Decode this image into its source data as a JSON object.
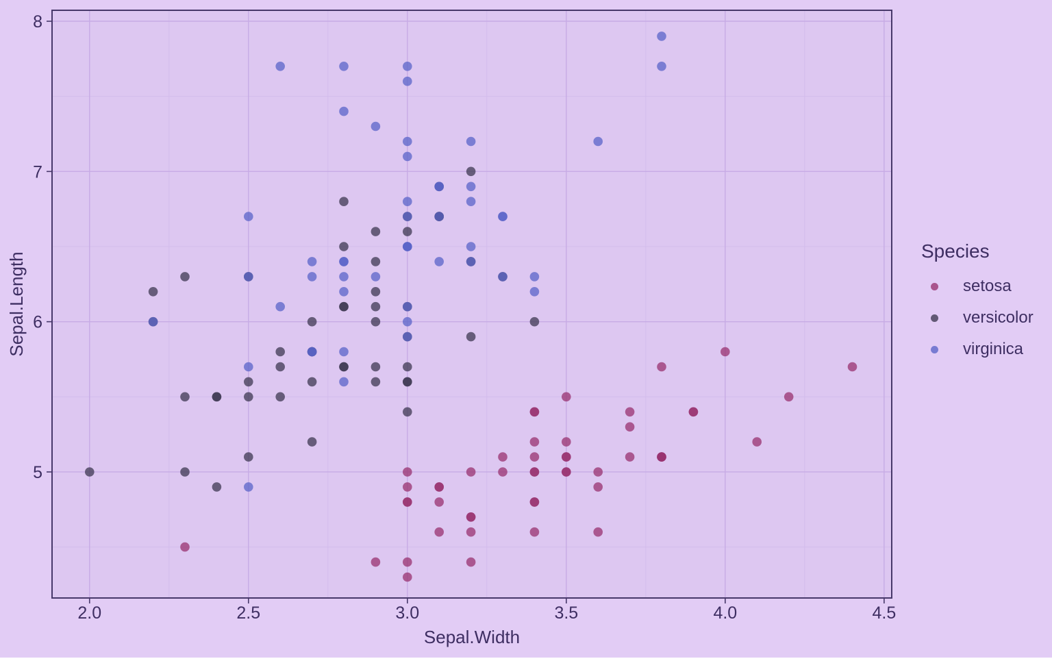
{
  "figure": {
    "background": "#e2ccf5",
    "panel_background": "#ddc7f1",
    "panel_border_color": "#47386a",
    "grid_major_color": "#c7abe5",
    "grid_minor_color": "#d3bcec",
    "tick_color": "#47386a",
    "text_color": "#3e2e62"
  },
  "chart_data": {
    "type": "scatter",
    "title": "",
    "xlabel": "Sepal.Width",
    "ylabel": "Sepal.Length",
    "x_range": [
      1.882,
      4.524
    ],
    "y_range": [
      4.161,
      8.073
    ],
    "x_major_ticks": [
      2.0,
      2.5,
      3.0,
      3.5,
      4.0,
      4.5
    ],
    "x_tick_labels": [
      "2.0",
      "2.5",
      "3.0",
      "3.5",
      "4.0",
      "4.5"
    ],
    "x_minor_ticks": [
      2.25,
      2.75,
      3.25,
      3.75,
      4.25
    ],
    "y_major_ticks": [
      5,
      6,
      7,
      8
    ],
    "y_tick_labels": [
      "5",
      "6",
      "7",
      "8"
    ],
    "y_minor_ticks": [
      4.5,
      5.5,
      6.5,
      7.5
    ],
    "grid": true,
    "legend": {
      "title": "Species",
      "position": "right"
    },
    "point_radius": 6.8,
    "point_opacity": 0.75,
    "series": [
      {
        "name": "setosa",
        "color": "#98326f",
        "points": [
          [
            3.5,
            5.1
          ],
          [
            3.0,
            4.9
          ],
          [
            3.2,
            4.7
          ],
          [
            3.1,
            4.6
          ],
          [
            3.6,
            5.0
          ],
          [
            3.9,
            5.4
          ],
          [
            3.4,
            4.6
          ],
          [
            3.4,
            5.0
          ],
          [
            2.9,
            4.4
          ],
          [
            3.1,
            4.9
          ],
          [
            3.7,
            5.4
          ],
          [
            3.4,
            4.8
          ],
          [
            3.0,
            4.8
          ],
          [
            3.0,
            4.3
          ],
          [
            4.0,
            5.8
          ],
          [
            4.4,
            5.7
          ],
          [
            3.9,
            5.4
          ],
          [
            3.5,
            5.1
          ],
          [
            3.8,
            5.7
          ],
          [
            3.8,
            5.1
          ],
          [
            3.4,
            5.4
          ],
          [
            3.7,
            5.1
          ],
          [
            3.6,
            4.6
          ],
          [
            3.3,
            5.1
          ],
          [
            3.4,
            4.8
          ],
          [
            3.0,
            5.0
          ],
          [
            3.4,
            5.0
          ],
          [
            3.5,
            5.2
          ],
          [
            3.4,
            5.2
          ],
          [
            3.2,
            4.7
          ],
          [
            3.1,
            4.8
          ],
          [
            3.4,
            5.4
          ],
          [
            4.1,
            5.2
          ],
          [
            4.2,
            5.5
          ],
          [
            3.1,
            4.9
          ],
          [
            3.2,
            5.0
          ],
          [
            3.5,
            5.5
          ],
          [
            3.6,
            4.9
          ],
          [
            3.0,
            4.4
          ],
          [
            3.4,
            5.1
          ],
          [
            3.5,
            5.0
          ],
          [
            2.3,
            4.5
          ],
          [
            3.2,
            4.4
          ],
          [
            3.5,
            5.0
          ],
          [
            3.8,
            5.1
          ],
          [
            3.0,
            4.8
          ],
          [
            3.8,
            5.1
          ],
          [
            3.2,
            4.6
          ],
          [
            3.7,
            5.3
          ],
          [
            3.3,
            5.0
          ]
        ]
      },
      {
        "name": "versicolor",
        "color": "#3e3851",
        "points": [
          [
            3.2,
            7.0
          ],
          [
            3.2,
            6.4
          ],
          [
            3.1,
            6.9
          ],
          [
            2.3,
            5.5
          ],
          [
            2.8,
            6.5
          ],
          [
            2.8,
            5.7
          ],
          [
            3.3,
            6.3
          ],
          [
            2.4,
            4.9
          ],
          [
            2.9,
            6.6
          ],
          [
            2.7,
            5.2
          ],
          [
            2.0,
            5.0
          ],
          [
            3.0,
            5.9
          ],
          [
            2.2,
            6.0
          ],
          [
            2.9,
            6.1
          ],
          [
            2.9,
            5.6
          ],
          [
            3.1,
            6.7
          ],
          [
            3.0,
            5.6
          ],
          [
            2.7,
            5.8
          ],
          [
            2.2,
            6.2
          ],
          [
            2.5,
            5.6
          ],
          [
            3.2,
            5.9
          ],
          [
            2.8,
            6.1
          ],
          [
            2.5,
            6.3
          ],
          [
            2.8,
            6.1
          ],
          [
            2.9,
            6.4
          ],
          [
            3.0,
            6.6
          ],
          [
            2.8,
            6.8
          ],
          [
            3.0,
            6.7
          ],
          [
            2.9,
            6.0
          ],
          [
            2.6,
            5.7
          ],
          [
            2.4,
            5.5
          ],
          [
            2.4,
            5.5
          ],
          [
            2.7,
            5.8
          ],
          [
            2.7,
            6.0
          ],
          [
            3.0,
            5.4
          ],
          [
            3.4,
            6.0
          ],
          [
            3.1,
            6.7
          ],
          [
            2.3,
            6.3
          ],
          [
            3.0,
            5.6
          ],
          [
            2.5,
            5.5
          ],
          [
            2.6,
            5.5
          ],
          [
            3.0,
            6.1
          ],
          [
            2.6,
            5.8
          ],
          [
            2.3,
            5.0
          ],
          [
            2.7,
            5.6
          ],
          [
            3.0,
            5.7
          ],
          [
            2.9,
            5.7
          ],
          [
            2.9,
            6.2
          ],
          [
            2.5,
            5.1
          ],
          [
            2.8,
            5.7
          ]
        ]
      },
      {
        "name": "virginica",
        "color": "#5a64c8",
        "points": [
          [
            3.3,
            6.3
          ],
          [
            2.7,
            5.8
          ],
          [
            3.0,
            7.1
          ],
          [
            2.9,
            6.3
          ],
          [
            3.0,
            6.5
          ],
          [
            3.0,
            7.6
          ],
          [
            2.5,
            4.9
          ],
          [
            2.9,
            7.3
          ],
          [
            2.5,
            6.7
          ],
          [
            3.6,
            7.2
          ],
          [
            3.2,
            6.5
          ],
          [
            2.7,
            6.4
          ],
          [
            3.0,
            6.8
          ],
          [
            2.5,
            5.7
          ],
          [
            2.8,
            5.8
          ],
          [
            3.2,
            6.4
          ],
          [
            3.0,
            6.5
          ],
          [
            3.8,
            7.7
          ],
          [
            2.6,
            7.7
          ],
          [
            2.2,
            6.0
          ],
          [
            3.2,
            6.9
          ],
          [
            2.8,
            5.6
          ],
          [
            2.8,
            7.7
          ],
          [
            2.7,
            6.3
          ],
          [
            3.3,
            6.7
          ],
          [
            3.2,
            7.2
          ],
          [
            2.8,
            6.2
          ],
          [
            3.0,
            6.1
          ],
          [
            2.8,
            6.4
          ],
          [
            3.0,
            7.2
          ],
          [
            2.8,
            7.4
          ],
          [
            3.8,
            7.9
          ],
          [
            2.8,
            6.4
          ],
          [
            2.8,
            6.3
          ],
          [
            2.6,
            6.1
          ],
          [
            3.0,
            7.7
          ],
          [
            3.4,
            6.3
          ],
          [
            3.1,
            6.4
          ],
          [
            3.0,
            6.0
          ],
          [
            3.1,
            6.9
          ],
          [
            3.1,
            6.7
          ],
          [
            3.1,
            6.9
          ],
          [
            2.7,
            5.8
          ],
          [
            3.2,
            6.8
          ],
          [
            3.3,
            6.7
          ],
          [
            3.0,
            6.7
          ],
          [
            2.5,
            6.3
          ],
          [
            3.0,
            6.5
          ],
          [
            3.4,
            6.2
          ],
          [
            3.0,
            5.9
          ]
        ]
      }
    ]
  }
}
